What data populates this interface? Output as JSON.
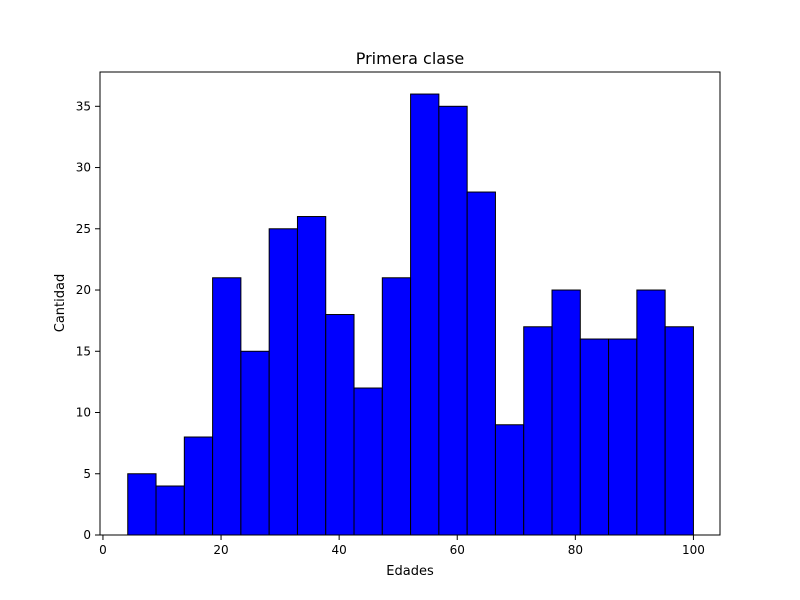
{
  "chart_data": {
    "type": "bar",
    "title": "Primera clase",
    "xlabel": "Edades",
    "ylabel": "Cantidad",
    "bin_edges": [
      4.2,
      8.99,
      13.78,
      18.57,
      23.36,
      28.15,
      32.94,
      37.73,
      42.52,
      47.31,
      52.1,
      56.89,
      61.68,
      66.47,
      71.26,
      76.05,
      80.84,
      85.63,
      90.42,
      95.21,
      100.0
    ],
    "values": [
      5,
      4,
      8,
      21,
      15,
      25,
      26,
      18,
      12,
      21,
      36,
      35,
      28,
      9,
      17,
      20,
      16,
      16,
      20,
      17
    ],
    "xlim": [
      -0.5,
      104.5
    ],
    "ylim": [
      0,
      37.8
    ],
    "xticks": [
      0,
      20,
      40,
      60,
      80,
      100
    ],
    "yticks": [
      0,
      5,
      10,
      15,
      20,
      25,
      30,
      35
    ],
    "bar_color": "#0000ff",
    "edge_color": "#000000",
    "grid": false
  }
}
